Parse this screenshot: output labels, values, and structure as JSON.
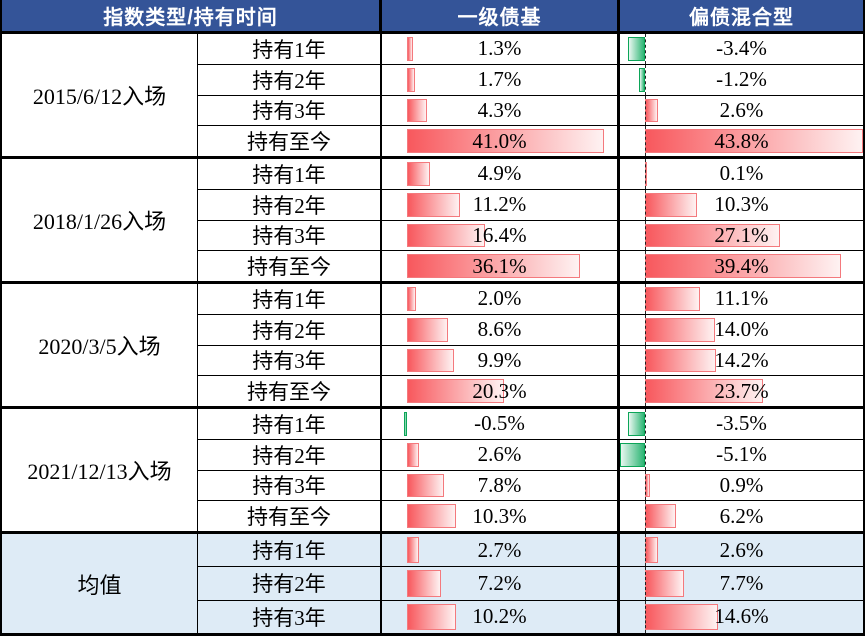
{
  "header": {
    "col1": "指数类型/持有时间",
    "col2": "一级债基",
    "col3": "偏债混合型"
  },
  "colors": {
    "header_bg": "#345498",
    "header_text": "#FFFFFF",
    "avg_bg": "#DEEBF6",
    "grid_border": "#000000",
    "bar_pos_solid": "#F8585D",
    "bar_pos_light": "#FEF2F2",
    "bar_pos_border": "#F4797D",
    "bar_neg_solid": "#2BB573",
    "bar_neg_light": "#E9F7F0",
    "bar_neg_border": "#0CA558"
  },
  "chart_data": {
    "type": "table",
    "title": "",
    "columns": [
      "指数类型/持有时间",
      "一级债基",
      "偏债混合型"
    ],
    "bar_axis": {
      "min": -5.1,
      "max": 43.8,
      "unit": "%",
      "positive_color": "red-gradient",
      "negative_color": "green-gradient"
    },
    "groups": [
      {
        "label": "2015/6/12入场",
        "highlight": false,
        "rows": [
          {
            "period": "持有1年",
            "fund1": 1.3,
            "fund1_label": "1.3%",
            "fund2": -3.4,
            "fund2_label": "-3.4%"
          },
          {
            "period": "持有2年",
            "fund1": 1.7,
            "fund1_label": "1.7%",
            "fund2": -1.2,
            "fund2_label": "-1.2%"
          },
          {
            "period": "持有3年",
            "fund1": 4.3,
            "fund1_label": "4.3%",
            "fund2": 2.6,
            "fund2_label": "2.6%"
          },
          {
            "period": "持有至今",
            "fund1": 41.0,
            "fund1_label": "41.0%",
            "fund2": 43.8,
            "fund2_label": "43.8%"
          }
        ]
      },
      {
        "label": "2018/1/26入场",
        "highlight": false,
        "rows": [
          {
            "period": "持有1年",
            "fund1": 4.9,
            "fund1_label": "4.9%",
            "fund2": 0.1,
            "fund2_label": "0.1%"
          },
          {
            "period": "持有2年",
            "fund1": 11.2,
            "fund1_label": "11.2%",
            "fund2": 10.3,
            "fund2_label": "10.3%"
          },
          {
            "period": "持有3年",
            "fund1": 16.4,
            "fund1_label": "16.4%",
            "fund2": 27.1,
            "fund2_label": "27.1%"
          },
          {
            "period": "持有至今",
            "fund1": 36.1,
            "fund1_label": "36.1%",
            "fund2": 39.4,
            "fund2_label": "39.4%"
          }
        ]
      },
      {
        "label": "2020/3/5入场",
        "highlight": false,
        "rows": [
          {
            "period": "持有1年",
            "fund1": 2.0,
            "fund1_label": "2.0%",
            "fund2": 11.1,
            "fund2_label": "11.1%"
          },
          {
            "period": "持有2年",
            "fund1": 8.6,
            "fund1_label": "8.6%",
            "fund2": 14.0,
            "fund2_label": "14.0%"
          },
          {
            "period": "持有3年",
            "fund1": 9.9,
            "fund1_label": "9.9%",
            "fund2": 14.2,
            "fund2_label": "14.2%"
          },
          {
            "period": "持有至今",
            "fund1": 20.3,
            "fund1_label": "20.3%",
            "fund2": 23.7,
            "fund2_label": "23.7%"
          }
        ]
      },
      {
        "label": "2021/12/13入场",
        "highlight": false,
        "rows": [
          {
            "period": "持有1年",
            "fund1": -0.5,
            "fund1_label": "-0.5%",
            "fund2": -3.5,
            "fund2_label": "-3.5%"
          },
          {
            "period": "持有2年",
            "fund1": 2.6,
            "fund1_label": "2.6%",
            "fund2": -5.1,
            "fund2_label": "-5.1%"
          },
          {
            "period": "持有3年",
            "fund1": 7.8,
            "fund1_label": "7.8%",
            "fund2": 0.9,
            "fund2_label": "0.9%"
          },
          {
            "period": "持有至今",
            "fund1": 10.3,
            "fund1_label": "10.3%",
            "fund2": 6.2,
            "fund2_label": "6.2%"
          }
        ]
      },
      {
        "label": "均值",
        "highlight": true,
        "rows": [
          {
            "period": "持有1年",
            "fund1": 2.7,
            "fund1_label": "2.7%",
            "fund2": 2.6,
            "fund2_label": "2.6%"
          },
          {
            "period": "持有2年",
            "fund1": 7.2,
            "fund1_label": "7.2%",
            "fund2": 7.7,
            "fund2_label": "7.7%"
          },
          {
            "period": "持有3年",
            "fund1": 10.2,
            "fund1_label": "10.2%",
            "fund2": 14.6,
            "fund2_label": "14.6%"
          }
        ]
      }
    ]
  }
}
